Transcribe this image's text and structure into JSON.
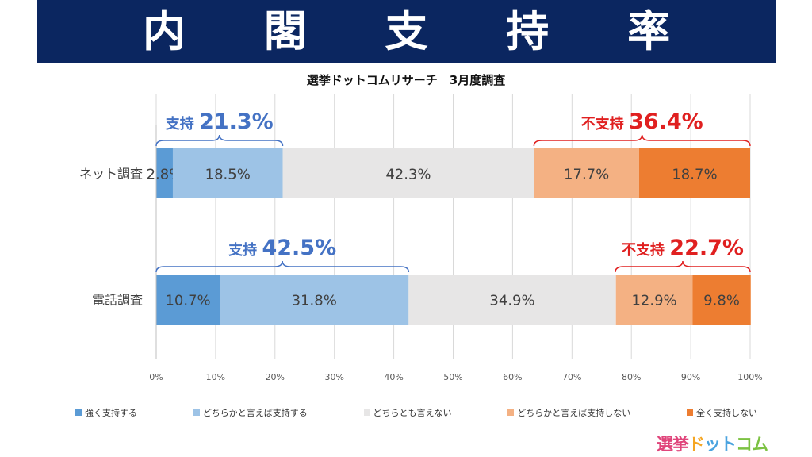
{
  "banner": {
    "title": "内 閣 支 持 率"
  },
  "chart_data": {
    "type": "bar",
    "orientation": "horizontal",
    "stacked": true,
    "title": "選挙ドットコムリサーチ　3月度調査",
    "categories": [
      "ネット調査",
      "電話調査"
    ],
    "series": [
      {
        "name": "強く支持する",
        "color": "#5b9bd5",
        "values": [
          2.8,
          10.7
        ],
        "labels": [
          "2.8%",
          "10.7%"
        ]
      },
      {
        "name": "どちらかと言えば支持する",
        "color": "#9dc3e6",
        "values": [
          18.5,
          31.8
        ],
        "labels": [
          "18.5%",
          "31.8%"
        ]
      },
      {
        "name": "どちらとも言えない",
        "color": "#e7e6e6",
        "values": [
          42.3,
          34.9
        ],
        "labels": [
          "42.3%",
          "34.9%"
        ]
      },
      {
        "name": "どちらかと言えば支持しない",
        "color": "#f4b183",
        "values": [
          17.7,
          12.9
        ],
        "labels": [
          "17.7%",
          "12.9%"
        ]
      },
      {
        "name": "全く支持しない",
        "color": "#ed7d31",
        "values": [
          18.7,
          9.8
        ],
        "labels": [
          "18.7%",
          "9.8%"
        ]
      }
    ],
    "xlim": [
      0,
      100
    ],
    "x_ticks": [
      "0%",
      "10%",
      "20%",
      "30%",
      "40%",
      "50%",
      "60%",
      "70%",
      "80%",
      "90%",
      "100%"
    ],
    "grid": true,
    "legend_position": "bottom",
    "annotations": [
      {
        "category": "ネット調査",
        "label": "支持",
        "value_text": "21.3%",
        "from": 0,
        "to": 21.3,
        "color": "#4472c4"
      },
      {
        "category": "ネット調査",
        "label": "不支持",
        "value_text": "36.4%",
        "from": 63.6,
        "to": 100,
        "color": "#e02020"
      },
      {
        "category": "電話調査",
        "label": "支持",
        "value_text": "42.5%",
        "from": 0,
        "to": 42.5,
        "color": "#4472c4"
      },
      {
        "category": "電話調査",
        "label": "不支持",
        "value_text": "22.7%",
        "from": 77.3,
        "to": 100,
        "color": "#e02020"
      }
    ]
  },
  "logo": {
    "part1": "選挙",
    "part2": "ド",
    "part3": "ット",
    "part4": "コム"
  }
}
